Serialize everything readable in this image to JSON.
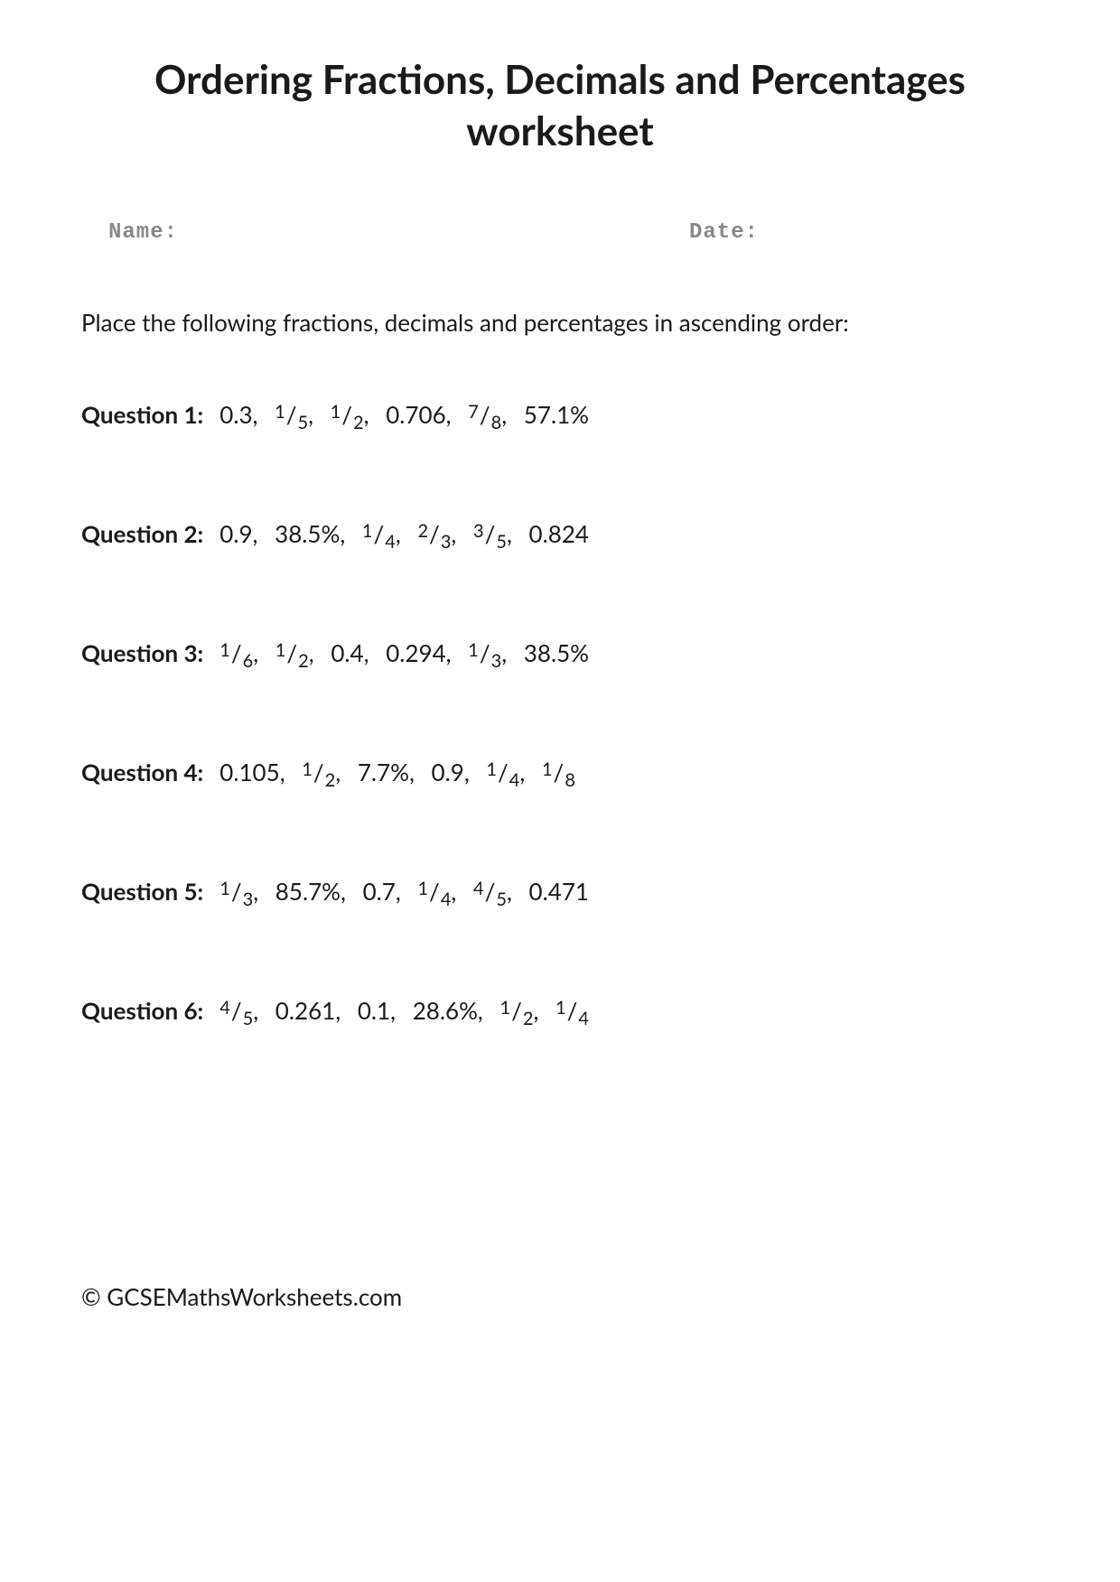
{
  "title": "Ordering Fractions, Decimals and Percentages worksheet",
  "labels": {
    "name": "Name:",
    "date": "Date:"
  },
  "instructions": "Place the following fractions, decimals and percentages in ascending order:",
  "questions": [
    {
      "label": "Question 1:",
      "values": [
        {
          "type": "decimal",
          "text": "0.3"
        },
        {
          "type": "fraction",
          "num": "1",
          "den": "5"
        },
        {
          "type": "fraction",
          "num": "1",
          "den": "2"
        },
        {
          "type": "decimal",
          "text": "0.706"
        },
        {
          "type": "fraction",
          "num": "7",
          "den": "8"
        },
        {
          "type": "percent",
          "text": "57.1%"
        }
      ]
    },
    {
      "label": "Question 2:",
      "values": [
        {
          "type": "decimal",
          "text": "0.9"
        },
        {
          "type": "percent",
          "text": "38.5%"
        },
        {
          "type": "fraction",
          "num": "1",
          "den": "4"
        },
        {
          "type": "fraction",
          "num": "2",
          "den": "3"
        },
        {
          "type": "fraction",
          "num": "3",
          "den": "5"
        },
        {
          "type": "decimal",
          "text": "0.824"
        }
      ]
    },
    {
      "label": "Question 3:",
      "values": [
        {
          "type": "fraction",
          "num": "1",
          "den": "6"
        },
        {
          "type": "fraction",
          "num": "1",
          "den": "2"
        },
        {
          "type": "decimal",
          "text": "0.4"
        },
        {
          "type": "decimal",
          "text": "0.294"
        },
        {
          "type": "fraction",
          "num": "1",
          "den": "3"
        },
        {
          "type": "percent",
          "text": "38.5%"
        }
      ]
    },
    {
      "label": "Question 4:",
      "values": [
        {
          "type": "decimal",
          "text": "0.105"
        },
        {
          "type": "fraction",
          "num": "1",
          "den": "2"
        },
        {
          "type": "percent",
          "text": "7.7%"
        },
        {
          "type": "decimal",
          "text": "0.9"
        },
        {
          "type": "fraction",
          "num": "1",
          "den": "4"
        },
        {
          "type": "fraction",
          "num": "1",
          "den": "8"
        }
      ]
    },
    {
      "label": "Question 5:",
      "values": [
        {
          "type": "fraction",
          "num": "1",
          "den": "3"
        },
        {
          "type": "percent",
          "text": "85.7%"
        },
        {
          "type": "decimal",
          "text": "0.7"
        },
        {
          "type": "fraction",
          "num": "1",
          "den": "4"
        },
        {
          "type": "fraction",
          "num": "4",
          "den": "5"
        },
        {
          "type": "decimal",
          "text": "0.471"
        }
      ]
    },
    {
      "label": "Question 6:",
      "values": [
        {
          "type": "fraction",
          "num": "4",
          "den": "5"
        },
        {
          "type": "decimal",
          "text": "0.261"
        },
        {
          "type": "decimal",
          "text": "0.1"
        },
        {
          "type": "percent",
          "text": "28.6%"
        },
        {
          "type": "fraction",
          "num": "1",
          "den": "2"
        },
        {
          "type": "fraction",
          "num": "1",
          "den": "4"
        }
      ]
    }
  ],
  "copyright": "© GCSEMathsWorksheets.com",
  "colors": {
    "background": "#ffffff",
    "text": "#1a1a1a",
    "label_gray": "#888888"
  },
  "fonts": {
    "title_size": 44,
    "body_size": 26,
    "label_size": 24,
    "fraction_small": 20
  }
}
